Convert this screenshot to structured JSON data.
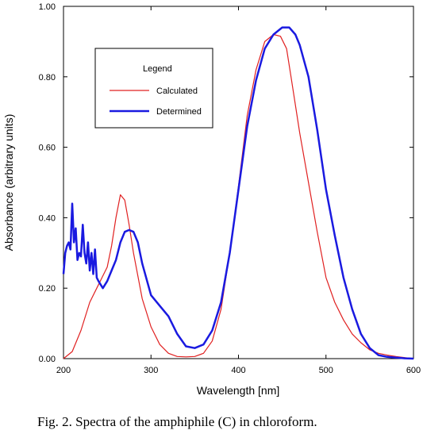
{
  "chart_data": {
    "type": "line",
    "xlabel": "Wavelength [nm]",
    "ylabel": "Absorbance (arbitrary units)",
    "xlim": [
      200,
      600
    ],
    "ylim": [
      0,
      1.0
    ],
    "x_ticks": [
      200,
      300,
      400,
      500,
      600
    ],
    "x_tick_labels": [
      "200",
      "300",
      "400",
      "500",
      "600"
    ],
    "y_ticks": [
      0,
      0.2,
      0.4,
      0.6,
      0.8,
      1.0
    ],
    "y_tick_labels": [
      "0.00",
      "0.20",
      "0.40",
      "0.60",
      "0.80",
      "1.00"
    ],
    "grid": false,
    "legend": {
      "title": "Legend",
      "position": "top-left"
    },
    "series": [
      {
        "name": "Calculated",
        "color": "#e02020",
        "points": [
          [
            200,
            0.0
          ],
          [
            210,
            0.02
          ],
          [
            220,
            0.08
          ],
          [
            230,
            0.16
          ],
          [
            240,
            0.21
          ],
          [
            250,
            0.26
          ],
          [
            255,
            0.32
          ],
          [
            260,
            0.4
          ],
          [
            265,
            0.465
          ],
          [
            270,
            0.45
          ],
          [
            275,
            0.38
          ],
          [
            280,
            0.3
          ],
          [
            290,
            0.17
          ],
          [
            300,
            0.09
          ],
          [
            310,
            0.04
          ],
          [
            320,
            0.015
          ],
          [
            330,
            0.006
          ],
          [
            340,
            0.005
          ],
          [
            350,
            0.006
          ],
          [
            360,
            0.015
          ],
          [
            370,
            0.05
          ],
          [
            380,
            0.14
          ],
          [
            390,
            0.3
          ],
          [
            400,
            0.49
          ],
          [
            410,
            0.69
          ],
          [
            420,
            0.82
          ],
          [
            430,
            0.9
          ],
          [
            440,
            0.92
          ],
          [
            448,
            0.915
          ],
          [
            455,
            0.88
          ],
          [
            460,
            0.8
          ],
          [
            470,
            0.64
          ],
          [
            480,
            0.5
          ],
          [
            490,
            0.36
          ],
          [
            500,
            0.23
          ],
          [
            510,
            0.16
          ],
          [
            520,
            0.11
          ],
          [
            530,
            0.07
          ],
          [
            540,
            0.045
          ],
          [
            550,
            0.025
          ],
          [
            560,
            0.015
          ],
          [
            570,
            0.01
          ],
          [
            580,
            0.006
          ],
          [
            590,
            0.003
          ],
          [
            600,
            0.0
          ]
        ]
      },
      {
        "name": "Determined",
        "color": "#1a1ae0",
        "points": [
          [
            200,
            0.24
          ],
          [
            202,
            0.3
          ],
          [
            204,
            0.32
          ],
          [
            206,
            0.33
          ],
          [
            208,
            0.31
          ],
          [
            210,
            0.44
          ],
          [
            212,
            0.33
          ],
          [
            214,
            0.37
          ],
          [
            216,
            0.28
          ],
          [
            218,
            0.3
          ],
          [
            220,
            0.29
          ],
          [
            222,
            0.38
          ],
          [
            224,
            0.3
          ],
          [
            226,
            0.27
          ],
          [
            228,
            0.33
          ],
          [
            230,
            0.25
          ],
          [
            232,
            0.3
          ],
          [
            234,
            0.24
          ],
          [
            236,
            0.31
          ],
          [
            238,
            0.23
          ],
          [
            240,
            0.22
          ],
          [
            245,
            0.2
          ],
          [
            250,
            0.22
          ],
          [
            255,
            0.25
          ],
          [
            260,
            0.28
          ],
          [
            265,
            0.33
          ],
          [
            270,
            0.36
          ],
          [
            275,
            0.365
          ],
          [
            280,
            0.36
          ],
          [
            285,
            0.33
          ],
          [
            290,
            0.27
          ],
          [
            300,
            0.18
          ],
          [
            310,
            0.15
          ],
          [
            320,
            0.12
          ],
          [
            330,
            0.07
          ],
          [
            340,
            0.035
          ],
          [
            350,
            0.03
          ],
          [
            360,
            0.04
          ],
          [
            370,
            0.08
          ],
          [
            380,
            0.16
          ],
          [
            390,
            0.3
          ],
          [
            400,
            0.48
          ],
          [
            410,
            0.66
          ],
          [
            420,
            0.79
          ],
          [
            430,
            0.88
          ],
          [
            440,
            0.92
          ],
          [
            450,
            0.94
          ],
          [
            458,
            0.94
          ],
          [
            465,
            0.92
          ],
          [
            470,
            0.89
          ],
          [
            480,
            0.8
          ],
          [
            490,
            0.65
          ],
          [
            500,
            0.48
          ],
          [
            510,
            0.35
          ],
          [
            520,
            0.23
          ],
          [
            530,
            0.14
          ],
          [
            540,
            0.07
          ],
          [
            550,
            0.03
          ],
          [
            560,
            0.01
          ],
          [
            570,
            0.005
          ],
          [
            580,
            0.003
          ],
          [
            590,
            0.001
          ],
          [
            600,
            0.0
          ]
        ]
      }
    ]
  },
  "caption": "Fig. 2. Spectra of the amphiphile (C) in chloroform."
}
